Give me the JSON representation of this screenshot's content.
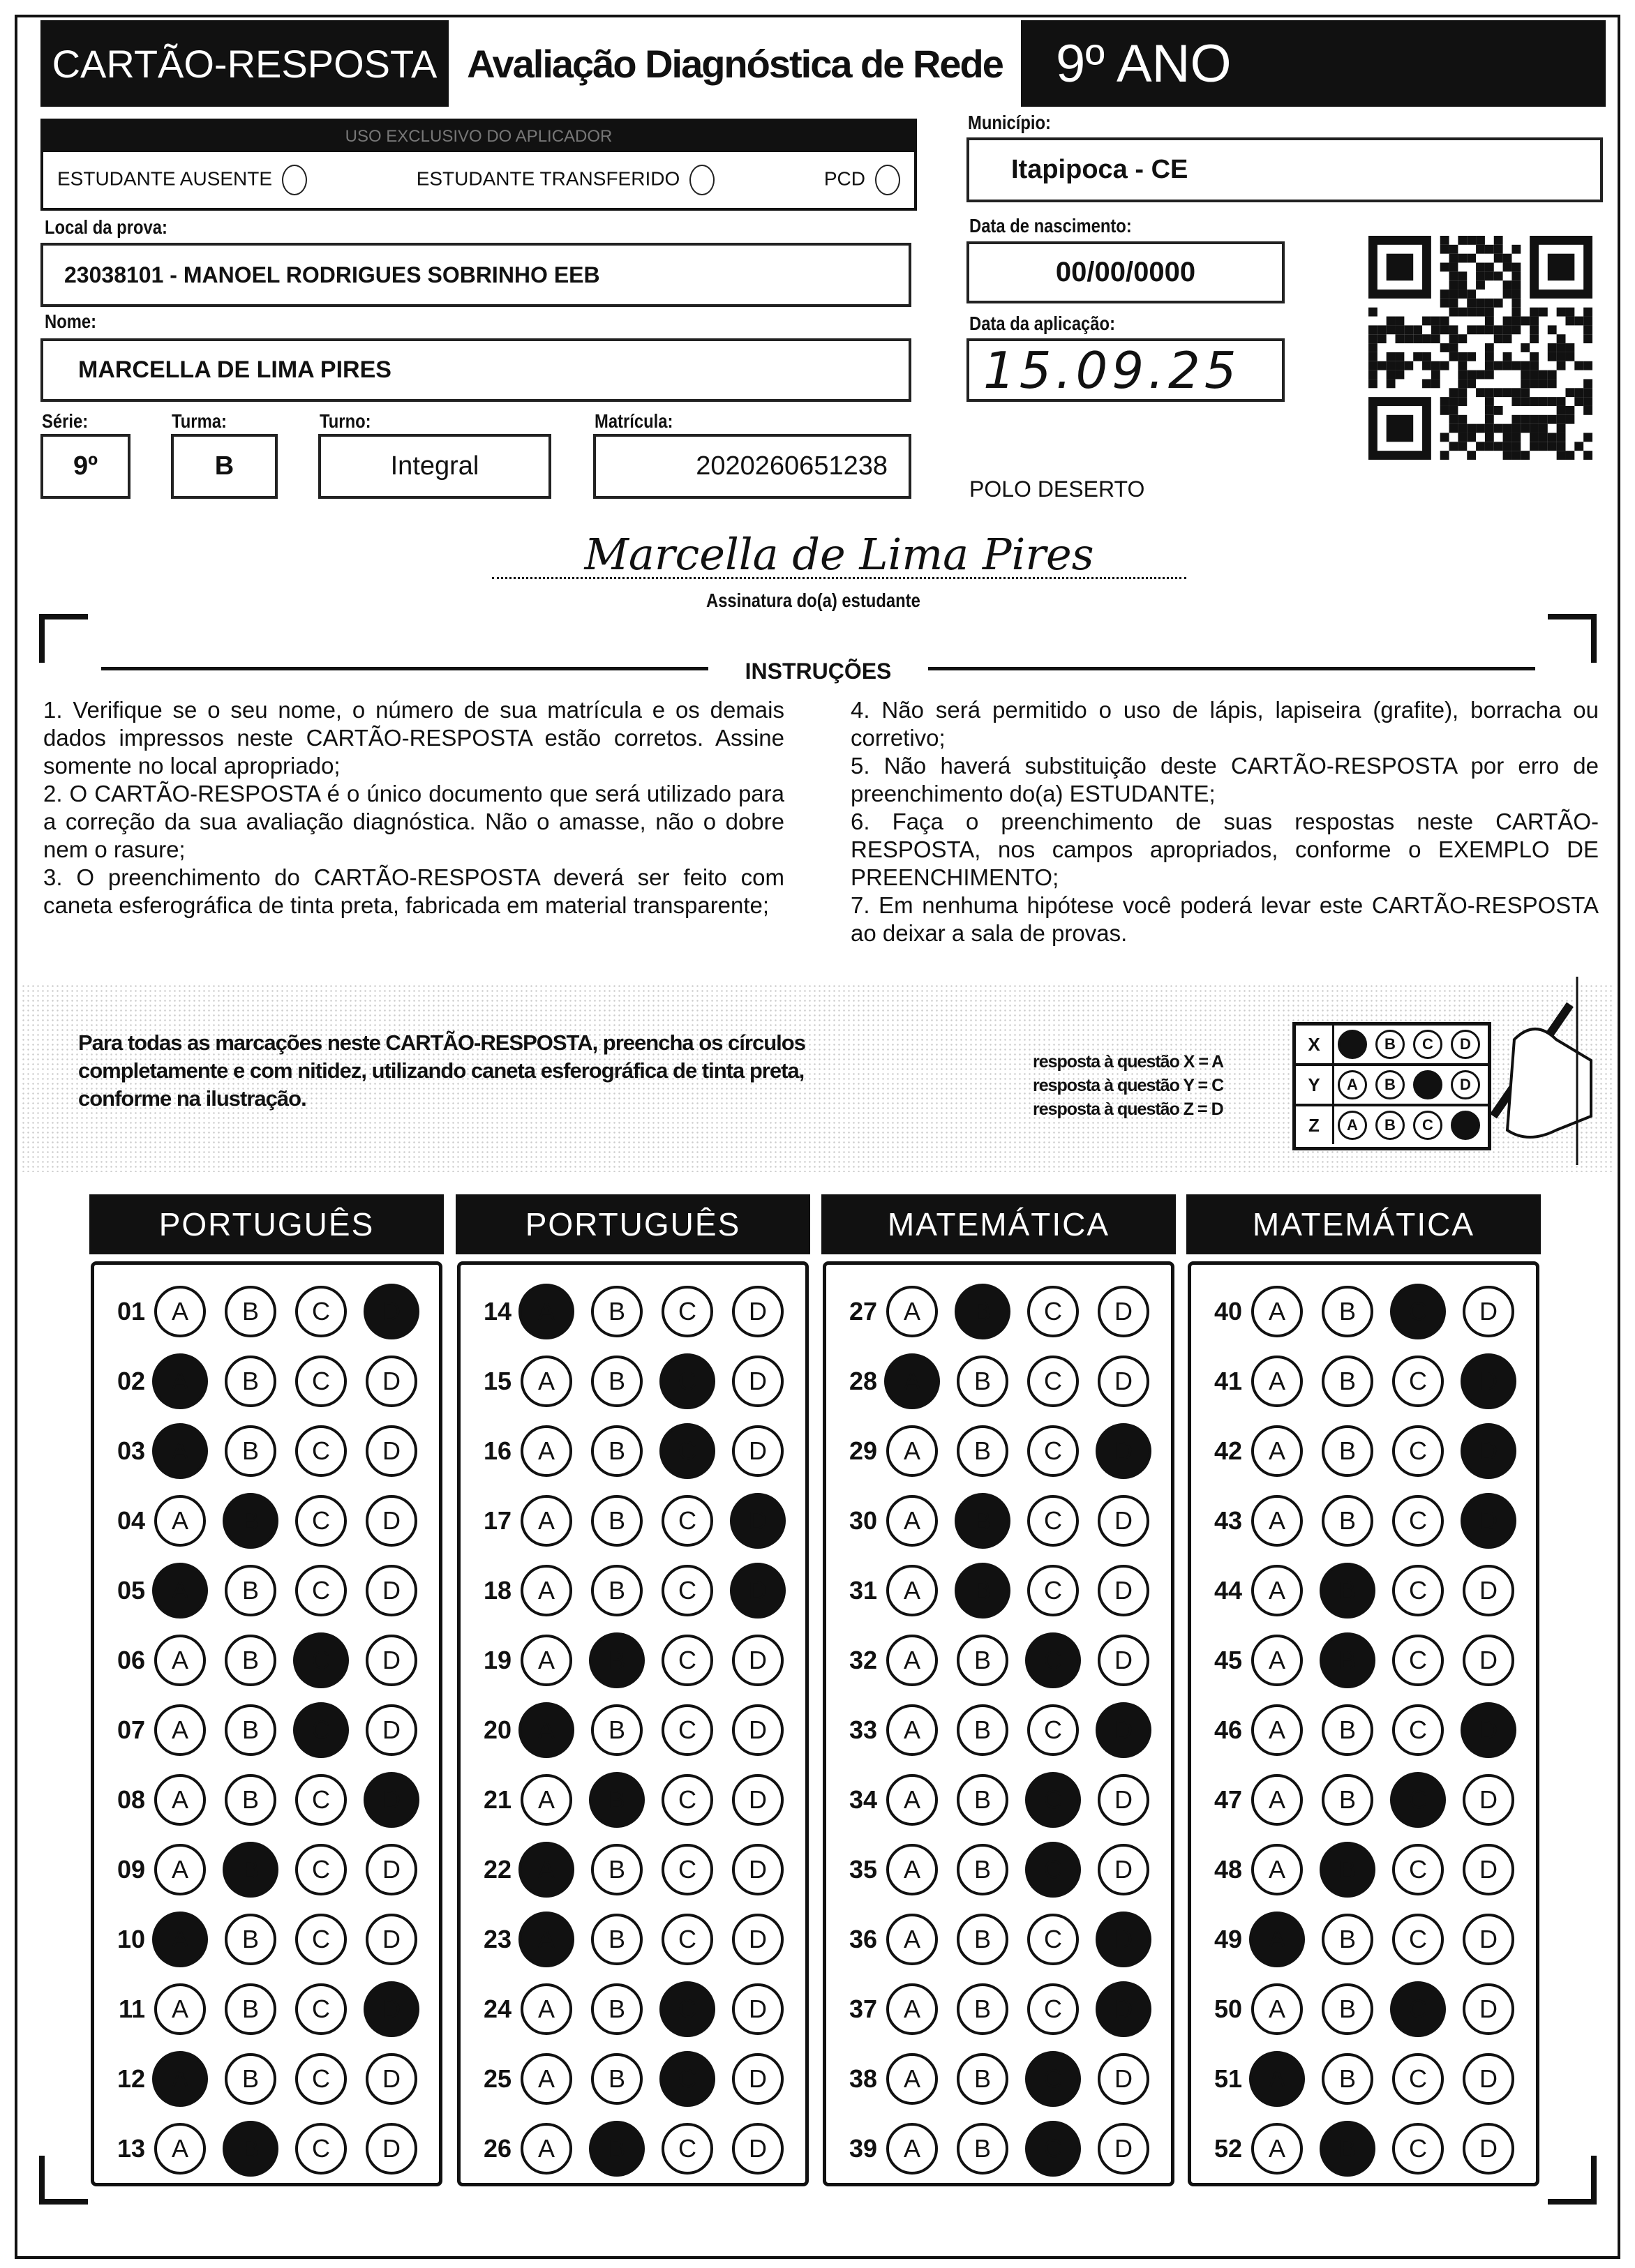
{
  "header": {
    "card_title": "CARTÃO-RESPOSTA",
    "exam_title": "Avaliação Diagnóstica de Rede",
    "grade": "9º ANO"
  },
  "applicator": {
    "title": "USO EXCLUSIVO DO APLICADOR",
    "options": [
      {
        "label": "ESTUDANTE AUSENTE"
      },
      {
        "label": "ESTUDANTE TRANSFERIDO"
      },
      {
        "label": "PCD"
      }
    ]
  },
  "fields": {
    "municipio_label": "Município:",
    "municipio": "Itapipoca - CE",
    "local_label": "Local da prova:",
    "local": "23038101 - MANOEL RODRIGUES SOBRINHO EEB",
    "nascimento_label": "Data de nascimento:",
    "nascimento": "00/00/0000",
    "nome_label": "Nome:",
    "nome": "MARCELLA DE LIMA PIRES",
    "aplicacao_label": "Data da aplicação:",
    "aplicacao": "15.09.25",
    "serie_label": "Série:",
    "serie": "9º",
    "turma_label": "Turma:",
    "turma": "B",
    "turno_label": "Turno:",
    "turno": "Integral",
    "matricula_label": "Matrícula:",
    "matricula": "2020260651238",
    "polo": "POLO DESERTO",
    "signature": "Marcella de Lima Pires",
    "signature_label": "Assinatura do(a) estudante"
  },
  "instructions": {
    "title": "INSTRUÇÕES",
    "items": [
      "1. Verifique se o seu nome, o número de sua matrícula e os demais dados impressos neste CARTÃO-RESPOSTA estão corretos. Assine somente no local apropriado;",
      "2. O CARTÃO-RESPOSTA é o único documento que será utilizado para a correção da sua avaliação diagnóstica. Não o amasse, não o dobre nem o rasure;",
      "3. O preenchimento do CARTÃO-RESPOSTA deverá ser feito com caneta esferográfica de tinta preta, fabricada em material transparente;",
      "4. Não será permitido o uso de lápis, lapiseira (grafite), borracha ou corretivo;",
      "5. Não haverá substituição deste CARTÃO-RESPOSTA por erro de preenchimento do(a) ESTUDANTE;",
      "6. Faça o preenchimento de suas respostas neste CARTÃO-RESPOSTA, nos campos apropriados, conforme o EXEMPLO DE PREENCHIMENTO;",
      "7. Em nenhuma hipótese você poderá levar este CARTÃO-RESPOSTA ao deixar a sala de provas."
    ]
  },
  "example": {
    "text": "Para todas as marcações neste CARTÃO-RESPOSTA, preencha os círculos completamente e com nitidez, utilizando caneta esferográfica de tinta preta, conforme na ilustração.",
    "legend": [
      "resposta à questão X = A",
      "resposta à questão Y = C",
      "resposta à questão Z = D"
    ],
    "rows": [
      {
        "q": "X",
        "answer": "A"
      },
      {
        "q": "Y",
        "answer": "C"
      },
      {
        "q": "Z",
        "answer": "D"
      }
    ]
  },
  "options": [
    "A",
    "B",
    "C",
    "D"
  ],
  "sections": [
    {
      "subject": "PORTUGUÊS",
      "questions": [
        [
          "01",
          "D"
        ],
        [
          "02",
          "A"
        ],
        [
          "03",
          "A"
        ],
        [
          "04",
          "B"
        ],
        [
          "05",
          "A"
        ],
        [
          "06",
          "C"
        ],
        [
          "07",
          "C"
        ],
        [
          "08",
          "D"
        ],
        [
          "09",
          "B"
        ],
        [
          "10",
          "A"
        ],
        [
          "11",
          "D"
        ],
        [
          "12",
          "A"
        ],
        [
          "13",
          "B"
        ]
      ]
    },
    {
      "subject": "PORTUGUÊS",
      "questions": [
        [
          "14",
          "A"
        ],
        [
          "15",
          "C"
        ],
        [
          "16",
          "C"
        ],
        [
          "17",
          "D"
        ],
        [
          "18",
          "D"
        ],
        [
          "19",
          "B"
        ],
        [
          "20",
          "A"
        ],
        [
          "21",
          "B"
        ],
        [
          "22",
          "A"
        ],
        [
          "23",
          "A"
        ],
        [
          "24",
          "C"
        ],
        [
          "25",
          "C"
        ],
        [
          "26",
          "B"
        ]
      ]
    },
    {
      "subject": "MATEMÁTICA",
      "questions": [
        [
          "27",
          "B"
        ],
        [
          "28",
          "A"
        ],
        [
          "29",
          "D"
        ],
        [
          "30",
          "B"
        ],
        [
          "31",
          "B"
        ],
        [
          "32",
          "C"
        ],
        [
          "33",
          "D"
        ],
        [
          "34",
          "C"
        ],
        [
          "35",
          "C"
        ],
        [
          "36",
          "D"
        ],
        [
          "37",
          "D"
        ],
        [
          "38",
          "C"
        ],
        [
          "39",
          "C"
        ]
      ]
    },
    {
      "subject": "MATEMÁTICA",
      "questions": [
        [
          "40",
          "C"
        ],
        [
          "41",
          "D"
        ],
        [
          "42",
          "D"
        ],
        [
          "43",
          "D"
        ],
        [
          "44",
          "B"
        ],
        [
          "45",
          "B"
        ],
        [
          "46",
          "D"
        ],
        [
          "47",
          "C"
        ],
        [
          "48",
          "B"
        ],
        [
          "49",
          "A"
        ],
        [
          "50",
          "C"
        ],
        [
          "51",
          "A"
        ],
        [
          "52",
          "B"
        ]
      ]
    }
  ]
}
